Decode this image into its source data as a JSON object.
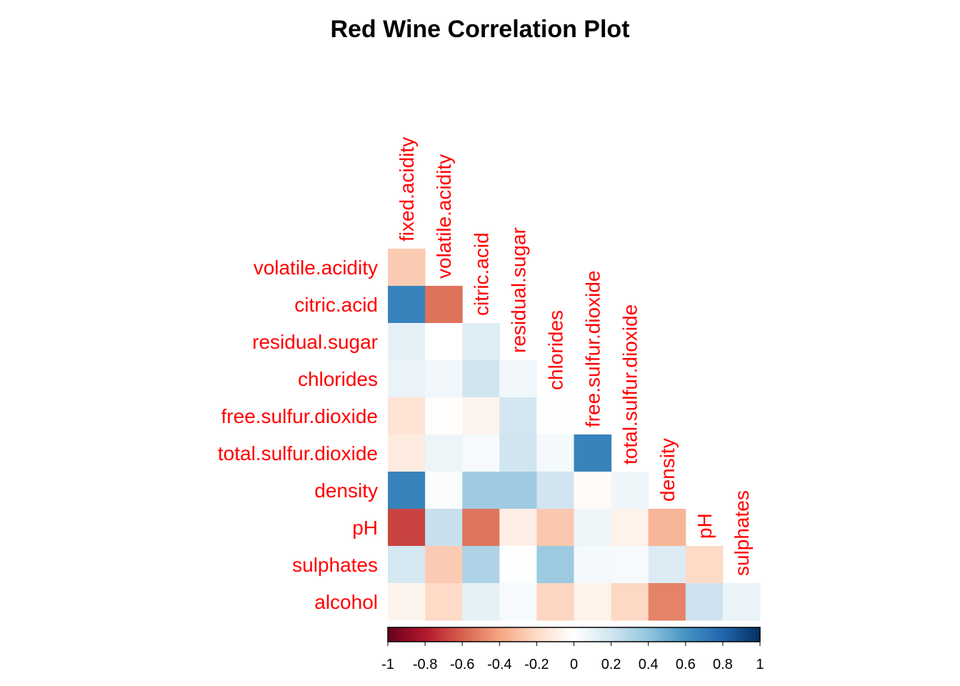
{
  "chart_data": {
    "type": "heatmap",
    "title": "Red Wine Correlation Plot",
    "variables": [
      "fixed.acidity",
      "volatile.acidity",
      "citric.acid",
      "residual.sugar",
      "chlorides",
      "free.sulfur.dioxide",
      "total.sulfur.dioxide",
      "density",
      "pH",
      "sulphates",
      "alcohol"
    ],
    "row_labels": [
      "volatile.acidity",
      "citric.acid",
      "residual.sugar",
      "chlorides",
      "free.sulfur.dioxide",
      "total.sulfur.dioxide",
      "density",
      "pH",
      "sulphates",
      "alcohol"
    ],
    "column_labels": [
      "fixed.acidity",
      "volatile.acidity",
      "citric.acid",
      "residual.sugar",
      "chlorides",
      "free.sulfur.dioxide",
      "total.sulfur.dioxide",
      "density",
      "pH",
      "sulphates"
    ],
    "layout": "lower-triangle",
    "values": [
      [
        -0.26
      ],
      [
        0.67,
        -0.55
      ],
      [
        0.11,
        0.0,
        0.14
      ],
      [
        0.09,
        0.06,
        0.2,
        0.06
      ],
      [
        -0.15,
        -0.01,
        -0.06,
        0.19,
        0.01
      ],
      [
        -0.11,
        0.08,
        0.04,
        0.2,
        0.05,
        0.67
      ],
      [
        0.67,
        0.02,
        0.36,
        0.36,
        0.2,
        -0.02,
        0.07
      ],
      [
        -0.68,
        0.23,
        -0.54,
        -0.09,
        -0.27,
        0.07,
        -0.07,
        -0.34
      ],
      [
        0.18,
        -0.26,
        0.31,
        0.01,
        0.37,
        0.05,
        0.04,
        0.15,
        -0.2
      ],
      [
        -0.06,
        -0.2,
        0.11,
        0.04,
        -0.22,
        -0.07,
        -0.21,
        -0.5,
        0.21,
        0.09
      ]
    ],
    "colorbar": {
      "range": [
        -1,
        1
      ],
      "tick_labels": [
        "-1",
        "-0.8",
        "-0.6",
        "-0.4",
        "-0.2",
        "0",
        "0.2",
        "0.4",
        "0.6",
        "0.8",
        "1"
      ],
      "colors": [
        "#67001f",
        "#b2182b",
        "#d6604d",
        "#f4a582",
        "#fddbc7",
        "#ffffff",
        "#d1e5f0",
        "#92c5de",
        "#4393c3",
        "#2166ac",
        "#053061"
      ]
    },
    "label_color": "#ff0000"
  }
}
